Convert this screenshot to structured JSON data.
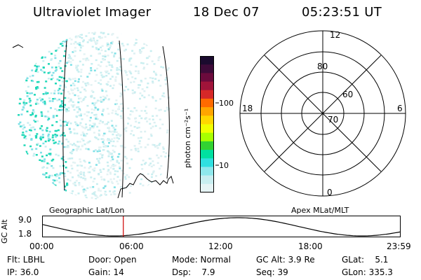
{
  "header": {
    "title": "Ultraviolet Imager",
    "date": "18 Dec 07",
    "time": "05:23:51 UT"
  },
  "colorbar": {
    "unit_label": "photon cm⁻²s⁻¹",
    "ticks": [
      "100",
      "10"
    ],
    "colors": [
      "#1a0a2e",
      "#3d0a38",
      "#6b0a3c",
      "#a0143a",
      "#d62828",
      "#ff6a00",
      "#ffa500",
      "#ffd700",
      "#f0ff00",
      "#a8ff00",
      "#32d232",
      "#00e0a0",
      "#30e0e0",
      "#8fe8ec",
      "#c8eef0",
      "#e6f4f5"
    ]
  },
  "polar": {
    "lat_labels": [
      "60",
      "70",
      "80"
    ],
    "mlt_labels": [
      "12",
      "18",
      "6",
      "0"
    ]
  },
  "footer_labels": {
    "left": "Geographic Lat/Lon",
    "right": "Apex MLat/MLT"
  },
  "alt_plot": {
    "axis_label": "GC Alt",
    "y_top": "9.0",
    "y_bottom": "1.8",
    "time_ticks": [
      "00:00",
      "06:00",
      "12:00",
      "18:00",
      "23:59"
    ],
    "current_time_marker_hours": 5.4,
    "marker_color": "#cc0000"
  },
  "info": {
    "flt": "Flt: LBHL",
    "ip": "IP: 36.0",
    "door": "Door: Open",
    "gain": "Gain: 14",
    "mode": "Mode: Normal",
    "dsp": "Dsp:    7.9",
    "gcalt": "GC Alt: 3.9 Re",
    "seq": "Seq: 39",
    "glat": "GLat:    5.1",
    "glon": "GLon: 335.3"
  }
}
